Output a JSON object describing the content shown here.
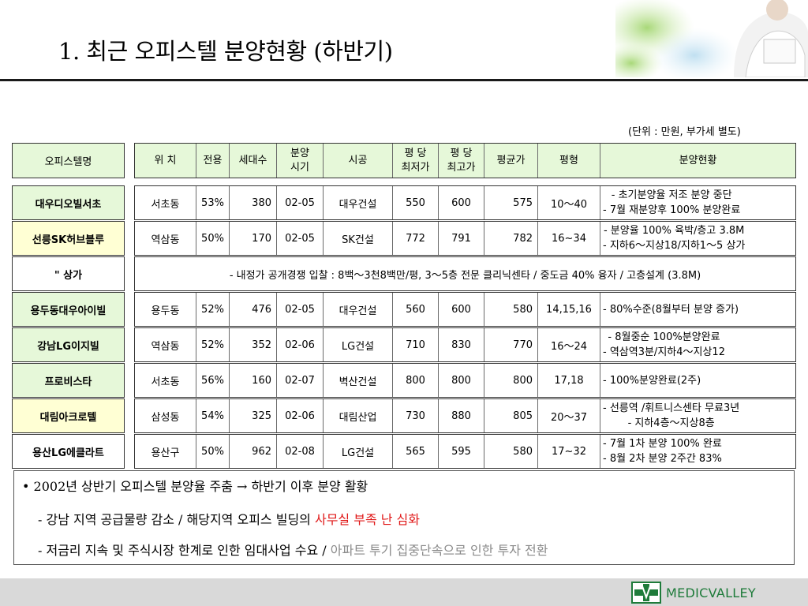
{
  "title": "1. 최근 오피스텔 분양현황 (하반기)",
  "unit_note": "(단위 : 만원, 부가세 별도)",
  "name_header": "오피스텔명",
  "columns": [
    "위 치",
    "전용",
    "세대수",
    "분양\n시기",
    "시공",
    "평 당\n최저가",
    "평 당\n최고가",
    "평균가",
    "평형",
    "분양현황"
  ],
  "rows": [
    {
      "name": "대우디오빌서초",
      "cells": [
        "서초동",
        "53%",
        "380",
        "02-05",
        "대우건설",
        "550",
        "600",
        "575",
        "10～40"
      ],
      "status": [
        "- 초기분양율 저조 분양 중단",
        "- 7월 재분양후 100% 분양완료"
      ]
    },
    {
      "name": "선릉SK허브블루",
      "cells": [
        "역삼동",
        "50%",
        "170",
        "02-05",
        "SK건설",
        "772",
        "791",
        "782",
        "16~34"
      ],
      "status": [
        "- 분양율 100% 육박/층고 3.8M",
        "- 지하6～지상18/지하1～5 상가"
      ]
    },
    {
      "name": "\"   상가",
      "merged": "- 내정가 공개경쟁 입찰 : 8백～3천8백만/평, 3～5층 전문 클리닉센타 / 중도금 40% 융자 / 고층설계 (3.8M)"
    },
    {
      "name": "용두동대우아이빌",
      "cells": [
        "용두동",
        "52%",
        "476",
        "02-05",
        "대우건설",
        "560",
        "600",
        "580",
        "14,15,16"
      ],
      "status": [
        "- 80%수준(8월부터 분양 증가)"
      ]
    },
    {
      "name": "강남LG이지빌",
      "cells": [
        "역삼동",
        "52%",
        "352",
        "02-06",
        "LG건설",
        "710",
        "830",
        "770",
        "16～24"
      ],
      "status": [
        "- 8월중순 100%분양완료",
        "- 역삼역3분/지하4～지상12"
      ]
    },
    {
      "name": "프로비스타",
      "cells": [
        "서초동",
        "56%",
        "160",
        "02-07",
        "벽산건설",
        "800",
        "800",
        "800",
        "17,18"
      ],
      "status": [
        "- 100%분양완료(2주)"
      ]
    },
    {
      "name": "대림아크로텔",
      "cells": [
        "삼성동",
        "54%",
        "325",
        "02-06",
        "대림산업",
        "730",
        "880",
        "805",
        "20～37"
      ],
      "status": [
        "- 선릉역 /휘트니스센타 무료3년",
        "- 지하4층～지상8층"
      ]
    },
    {
      "name": "용산LG에클라트",
      "cells": [
        "용산구",
        "50%",
        "962",
        "02-08",
        "LG건설",
        "565",
        "595",
        "580",
        "17~32"
      ],
      "status": [
        "- 7월 1차 분양 100% 완료",
        "- 8월 2차 분양 2주간 83%"
      ]
    }
  ],
  "bullets": {
    "line1": "• 2002년 상반기 오피스텔 분양율 주춤 → 하반기 이후 분양 활황",
    "line2_a": "- 강남 지역 공급물량 감소 / 해당지역 오피스 빌딩의 ",
    "line2_b": "사무실 부족 난 심화",
    "line3_a": "- 저금리 지속 및 주식시장 한계로 인한 임대사업 수요 / ",
    "line3_b": "아파트 투기 집중단속으로 인한  투자 전환"
  },
  "brand": "MEDICVALLEY",
  "colors": {
    "header_bg": "#e6f8d9",
    "highlight_row": "#ffffd4",
    "accent_red": "#e01818",
    "brand_green": "#1e7b3a"
  }
}
